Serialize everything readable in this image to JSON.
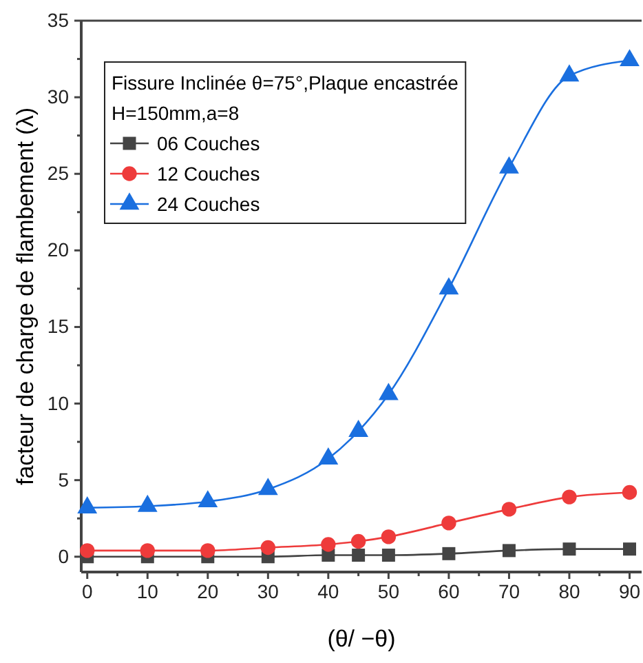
{
  "chart_data": {
    "type": "line",
    "xlabel": "(θ/ −θ)",
    "ylabel": "facteur de charge de flambement (λ)",
    "legend_title": "Fissure Inclinée θ=75°,Plaque encastrée\nH=150mm,a=8",
    "legend": "top left",
    "grid": false,
    "x": [
      0,
      10,
      20,
      30,
      40,
      45,
      50,
      60,
      70,
      80,
      90
    ],
    "xlim": [
      -1,
      92
    ],
    "ylim": [
      -1,
      35
    ],
    "xticks": [
      0,
      {
        "value": 5,
        "label": null
      },
      10,
      {
        "value": 15,
        "label": null
      },
      20,
      {
        "value": 25,
        "label": null
      },
      30,
      {
        "value": 35,
        "label": null
      },
      40,
      {
        "value": 45,
        "label": null
      },
      50,
      {
        "value": 55,
        "label": null
      },
      60,
      {
        "value": 65,
        "label": null
      },
      70,
      {
        "value": 75,
        "label": null
      },
      80,
      {
        "value": 85,
        "label": null
      },
      90
    ],
    "yticks": [
      0,
      {
        "value": 2.5,
        "label": null
      },
      5,
      {
        "value": 7.5,
        "label": null
      },
      10,
      {
        "value": 12.5,
        "label": null
      },
      15,
      {
        "value": 17.5,
        "label": null
      },
      20,
      {
        "value": 22.5,
        "label": null
      },
      25,
      {
        "value": 27.5,
        "label": null
      },
      30,
      {
        "value": 32.5,
        "label": null
      },
      35
    ],
    "series": [
      {
        "name": "06 Couches",
        "color": "#444444",
        "marker": "square",
        "values": [
          0,
          0,
          0,
          0,
          0.1,
          0.1,
          0.1,
          0.2,
          0.4,
          0.5,
          0.5
        ]
      },
      {
        "name": "12 Couches",
        "color": "#ee3b3b",
        "marker": "circle",
        "values": [
          0.4,
          0.4,
          0.4,
          0.6,
          0.8,
          1.0,
          1.3,
          2.2,
          3.1,
          3.9,
          4.2
        ]
      },
      {
        "name": "24 Couches",
        "color": "#1a6fdf",
        "marker": "triangle",
        "values": [
          3.2,
          3.3,
          3.6,
          4.4,
          6.4,
          8.2,
          10.6,
          17.5,
          25.4,
          31.4,
          32.4
        ]
      }
    ]
  }
}
